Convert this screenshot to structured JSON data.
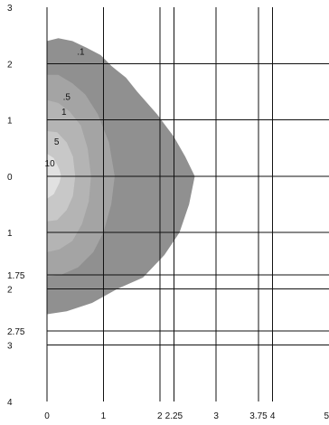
{
  "chart_data": {
    "type": "contour",
    "title": "",
    "xlabel": "",
    "ylabel": "",
    "xlim": [
      0,
      5
    ],
    "ylim": [
      -4,
      3
    ],
    "y_label_mode": "absolute",
    "x_ticks": [
      0,
      1,
      2,
      2.25,
      3,
      3.75,
      4,
      5
    ],
    "x_tick_labels": [
      "0",
      "1",
      "2",
      "2.25",
      "3",
      "3.75",
      "4",
      "5"
    ],
    "y_ticks": [
      3,
      2,
      1,
      0,
      -1,
      -1.75,
      -2,
      -2.75,
      -3,
      -4
    ],
    "y_tick_labels": [
      "3",
      "2",
      "1",
      "0",
      "1",
      "1.75",
      "2",
      "2.75",
      "3",
      "4"
    ],
    "grid": {
      "vertical_at": [
        0,
        1,
        2,
        2.25,
        3,
        3.75,
        4
      ],
      "horizontal_at": [
        2,
        1,
        0,
        -1,
        -1.75,
        -2,
        -2.75,
        -3
      ]
    },
    "colors": {
      "background": "#ffffff",
      "level_0_1": "#909090",
      "level_0_5": "#a4a4a4",
      "level_1": "#b4b4b4",
      "level_5": "#c8c8c8",
      "level_10": "#e1e1e1",
      "grid": "#111111",
      "text": "#111111"
    },
    "levels": [
      {
        "name": ".1",
        "label": ".1",
        "label_at": [
          0.6,
          2.2
        ],
        "color": "#909090",
        "boundary": [
          [
            0,
            2.4
          ],
          [
            0.2,
            2.45
          ],
          [
            0.45,
            2.4
          ],
          [
            0.7,
            2.28
          ],
          [
            0.95,
            2.15
          ],
          [
            1.15,
            1.95
          ],
          [
            1.4,
            1.75
          ],
          [
            1.6,
            1.5
          ],
          [
            1.95,
            1.1
          ],
          [
            2.25,
            0.7
          ],
          [
            2.45,
            0.35
          ],
          [
            2.62,
            0
          ],
          [
            2.52,
            -0.5
          ],
          [
            2.35,
            -1
          ],
          [
            2.08,
            -1.4
          ],
          [
            1.7,
            -1.8
          ],
          [
            1.25,
            -2.0
          ],
          [
            0.8,
            -2.25
          ],
          [
            0.35,
            -2.4
          ],
          [
            0,
            -2.45
          ]
        ]
      },
      {
        "name": ".5",
        "label": ".5",
        "label_at": [
          0.35,
          1.4
        ],
        "color": "#a4a4a4",
        "boundary": [
          [
            0,
            1.8
          ],
          [
            0.2,
            1.8
          ],
          [
            0.45,
            1.65
          ],
          [
            0.68,
            1.45
          ],
          [
            0.9,
            1.1
          ],
          [
            1.1,
            0.6
          ],
          [
            1.2,
            0
          ],
          [
            1.14,
            -0.5
          ],
          [
            1.0,
            -1.0
          ],
          [
            0.82,
            -1.35
          ],
          [
            0.55,
            -1.62
          ],
          [
            0.25,
            -1.75
          ],
          [
            0,
            -1.78
          ]
        ]
      },
      {
        "name": "1",
        "label": "1",
        "label_at": [
          0.3,
          1.13
        ],
        "color": "#b4b4b4",
        "boundary": [
          [
            0,
            1.35
          ],
          [
            0.2,
            1.3
          ],
          [
            0.4,
            1.15
          ],
          [
            0.6,
            0.9
          ],
          [
            0.72,
            0.5
          ],
          [
            0.78,
            0
          ],
          [
            0.74,
            -0.45
          ],
          [
            0.62,
            -0.85
          ],
          [
            0.45,
            -1.15
          ],
          [
            0.22,
            -1.3
          ],
          [
            0,
            -1.35
          ]
        ]
      },
      {
        "name": "5",
        "label": "5",
        "label_at": [
          0.17,
          0.6
        ],
        "color": "#c8c8c8",
        "boundary": [
          [
            0,
            0.8
          ],
          [
            0.18,
            0.78
          ],
          [
            0.35,
            0.6
          ],
          [
            0.46,
            0.35
          ],
          [
            0.5,
            0
          ],
          [
            0.46,
            -0.35
          ],
          [
            0.35,
            -0.6
          ],
          [
            0.18,
            -0.78
          ],
          [
            0,
            -0.8
          ]
        ]
      },
      {
        "name": "10",
        "label": "10",
        "label_at": [
          0.05,
          0.22
        ],
        "color": "#e1e1e1",
        "boundary": [
          [
            0,
            0.4
          ],
          [
            0.12,
            0.32
          ],
          [
            0.22,
            0.12
          ],
          [
            0.25,
            0
          ],
          [
            0.22,
            -0.12
          ],
          [
            0.12,
            -0.32
          ],
          [
            0,
            -0.4
          ]
        ]
      }
    ]
  }
}
